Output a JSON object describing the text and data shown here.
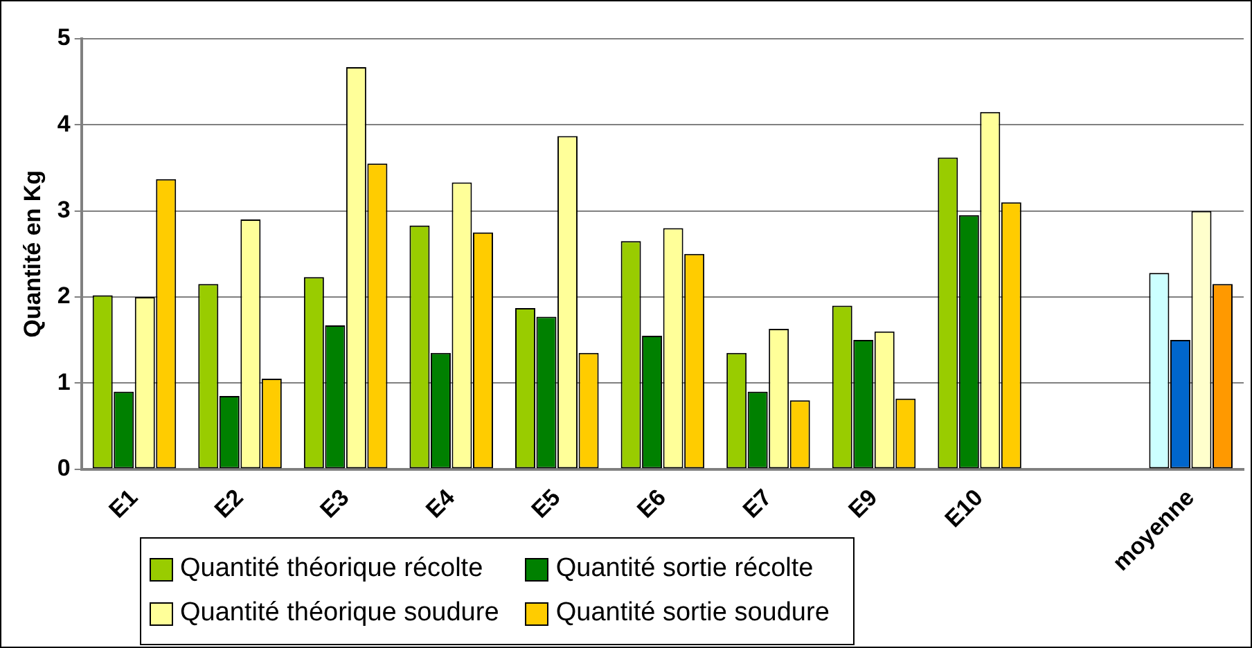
{
  "chart_data": {
    "type": "bar",
    "ylabel": "Quantité en Kg",
    "categories": [
      "E1",
      "E2",
      "E3",
      "E4",
      "E5",
      "E6",
      "E7",
      "E9",
      "E10",
      null,
      "moyenne"
    ],
    "series": [
      {
        "name": "Quantité théorique récolte",
        "color": "#99cc00",
        "colors": [
          "#99cc00",
          "#99cc00",
          "#99cc00",
          "#99cc00",
          "#99cc00",
          "#99cc00",
          "#99cc00",
          "#99cc00",
          "#99cc00",
          "#99cc00",
          "#ccffff"
        ],
        "values": [
          2.02,
          2.15,
          2.23,
          2.83,
          1.87,
          2.65,
          1.35,
          1.9,
          3.62,
          null,
          2.28
        ]
      },
      {
        "name": "Quantité sortie récolte",
        "color": "#008000",
        "colors": [
          "#008000",
          "#008000",
          "#008000",
          "#008000",
          "#008000",
          "#008000",
          "#008000",
          "#008000",
          "#008000",
          "#008000",
          "#0066cc"
        ],
        "values": [
          0.9,
          0.85,
          1.67,
          1.35,
          1.77,
          1.55,
          0.9,
          1.5,
          2.95,
          null,
          1.5
        ]
      },
      {
        "name": "Quantité théorique soudure",
        "color": "#ffff99",
        "colors": [
          "#ffff99",
          "#ffff99",
          "#ffff99",
          "#ffff99",
          "#ffff99",
          "#ffff99",
          "#ffff99",
          "#ffff99",
          "#ffff99",
          "#ffff99",
          "#ffffcc"
        ],
        "values": [
          2.0,
          2.9,
          4.67,
          3.33,
          3.87,
          2.8,
          1.63,
          1.6,
          4.15,
          null,
          3.0
        ]
      },
      {
        "name": "Quantité sortie soudure",
        "color": "#ffcc00",
        "colors": [
          "#ffcc00",
          "#ffcc00",
          "#ffcc00",
          "#ffcc00",
          "#ffcc00",
          "#ffcc00",
          "#ffcc00",
          "#ffcc00",
          "#ffcc00",
          "#ffcc00",
          "#ff9900"
        ],
        "values": [
          3.37,
          1.05,
          3.55,
          2.75,
          1.35,
          2.5,
          0.8,
          0.82,
          3.1,
          null,
          2.15
        ]
      }
    ],
    "ylim": [
      0,
      5
    ],
    "yticks": [
      0,
      1,
      2,
      3,
      4,
      5
    ],
    "grid": "y",
    "legend": "bottom"
  }
}
